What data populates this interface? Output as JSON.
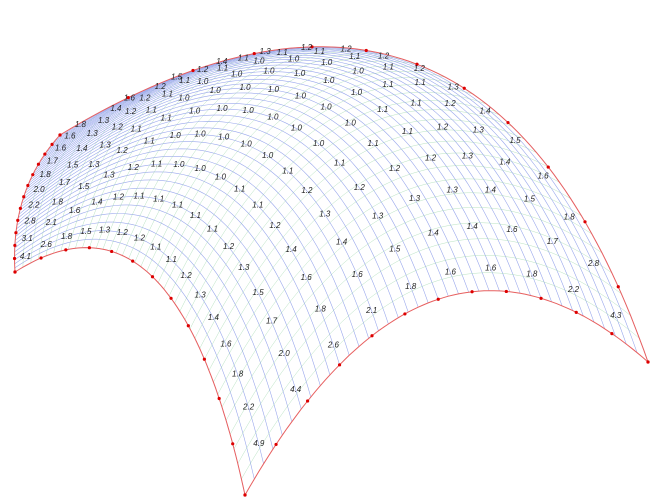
{
  "labels": [
    [
      "4.1",
      "2.6",
      "1.8",
      "1.5",
      "1.3",
      "1.2",
      "1.2",
      "1.1",
      "1.1",
      "1.2",
      "1.3",
      "1.4",
      "1.6",
      "1.8",
      "2.2",
      "4.9"
    ],
    [
      "3.1",
      "2.1",
      "1.6",
      "1.4",
      "1.2",
      "1.1",
      "1.1",
      "1.1",
      "1.1",
      "1.1",
      "1.2",
      "1.3",
      "1.5",
      "1.7",
      "2.0",
      "4.4"
    ],
    [
      "2.8",
      "1.8",
      "1.5",
      "1.3",
      "1.2",
      "1.1",
      "1.0",
      "1.0",
      "1.0",
      "1.1",
      "1.1",
      "1.2",
      "1.4",
      "1.6",
      "1.8",
      "2.6"
    ],
    [
      "2.2",
      "1.7",
      "1.3",
      "1.2",
      "1.1",
      "1.0",
      "1.0",
      "1.0",
      "1.0",
      "1.0",
      "1.1",
      "1.2",
      "1.3",
      "1.4",
      "1.6",
      "2.1"
    ],
    [
      "2.0",
      "1.5",
      "1.3",
      "1.1",
      "1.1",
      "1.0",
      "1.0",
      "1.0",
      "1.0",
      "1.0",
      "1.0",
      "1.1",
      "1.2",
      "1.3",
      "1.5",
      "1.8"
    ],
    [
      "1.8",
      "1.4",
      "1.2",
      "1.1",
      "1.0",
      "1.0",
      "1.0",
      "1.0",
      "1.0",
      "1.0",
      "1.0",
      "1.1",
      "1.2",
      "1.3",
      "1.4",
      "1.6"
    ],
    [
      "1.7",
      "1.3",
      "1.2",
      "1.1",
      "1.0",
      "1.0",
      "1.0",
      "1.0",
      "1.0",
      "1.0",
      "1.1",
      "1.1",
      "1.2",
      "1.3",
      "1.4",
      "1.6"
    ],
    [
      "1.6",
      "1.3",
      "1.2",
      "1.1",
      "1.1",
      "1.0",
      "1.0",
      "1.0",
      "1.0",
      "1.1",
      "1.1",
      "1.2",
      "1.3",
      "1.4",
      "1.6",
      "1.8"
    ],
    [
      "1.6",
      "1.4",
      "1.2",
      "1.2",
      "1.1",
      "1.1",
      "1.1",
      "1.1",
      "1.1",
      "1.1",
      "1.2",
      "1.3",
      "1.4",
      "1.5",
      "1.7",
      "2.2"
    ],
    [
      "1.8",
      "1.6",
      "1.5",
      "1.4",
      "1.3",
      "1.2",
      "1.2",
      "1.2",
      "1.2",
      "1.3",
      "1.4",
      "1.5",
      "1.6",
      "1.8",
      "2.8",
      "4.3"
    ]
  ]
}
